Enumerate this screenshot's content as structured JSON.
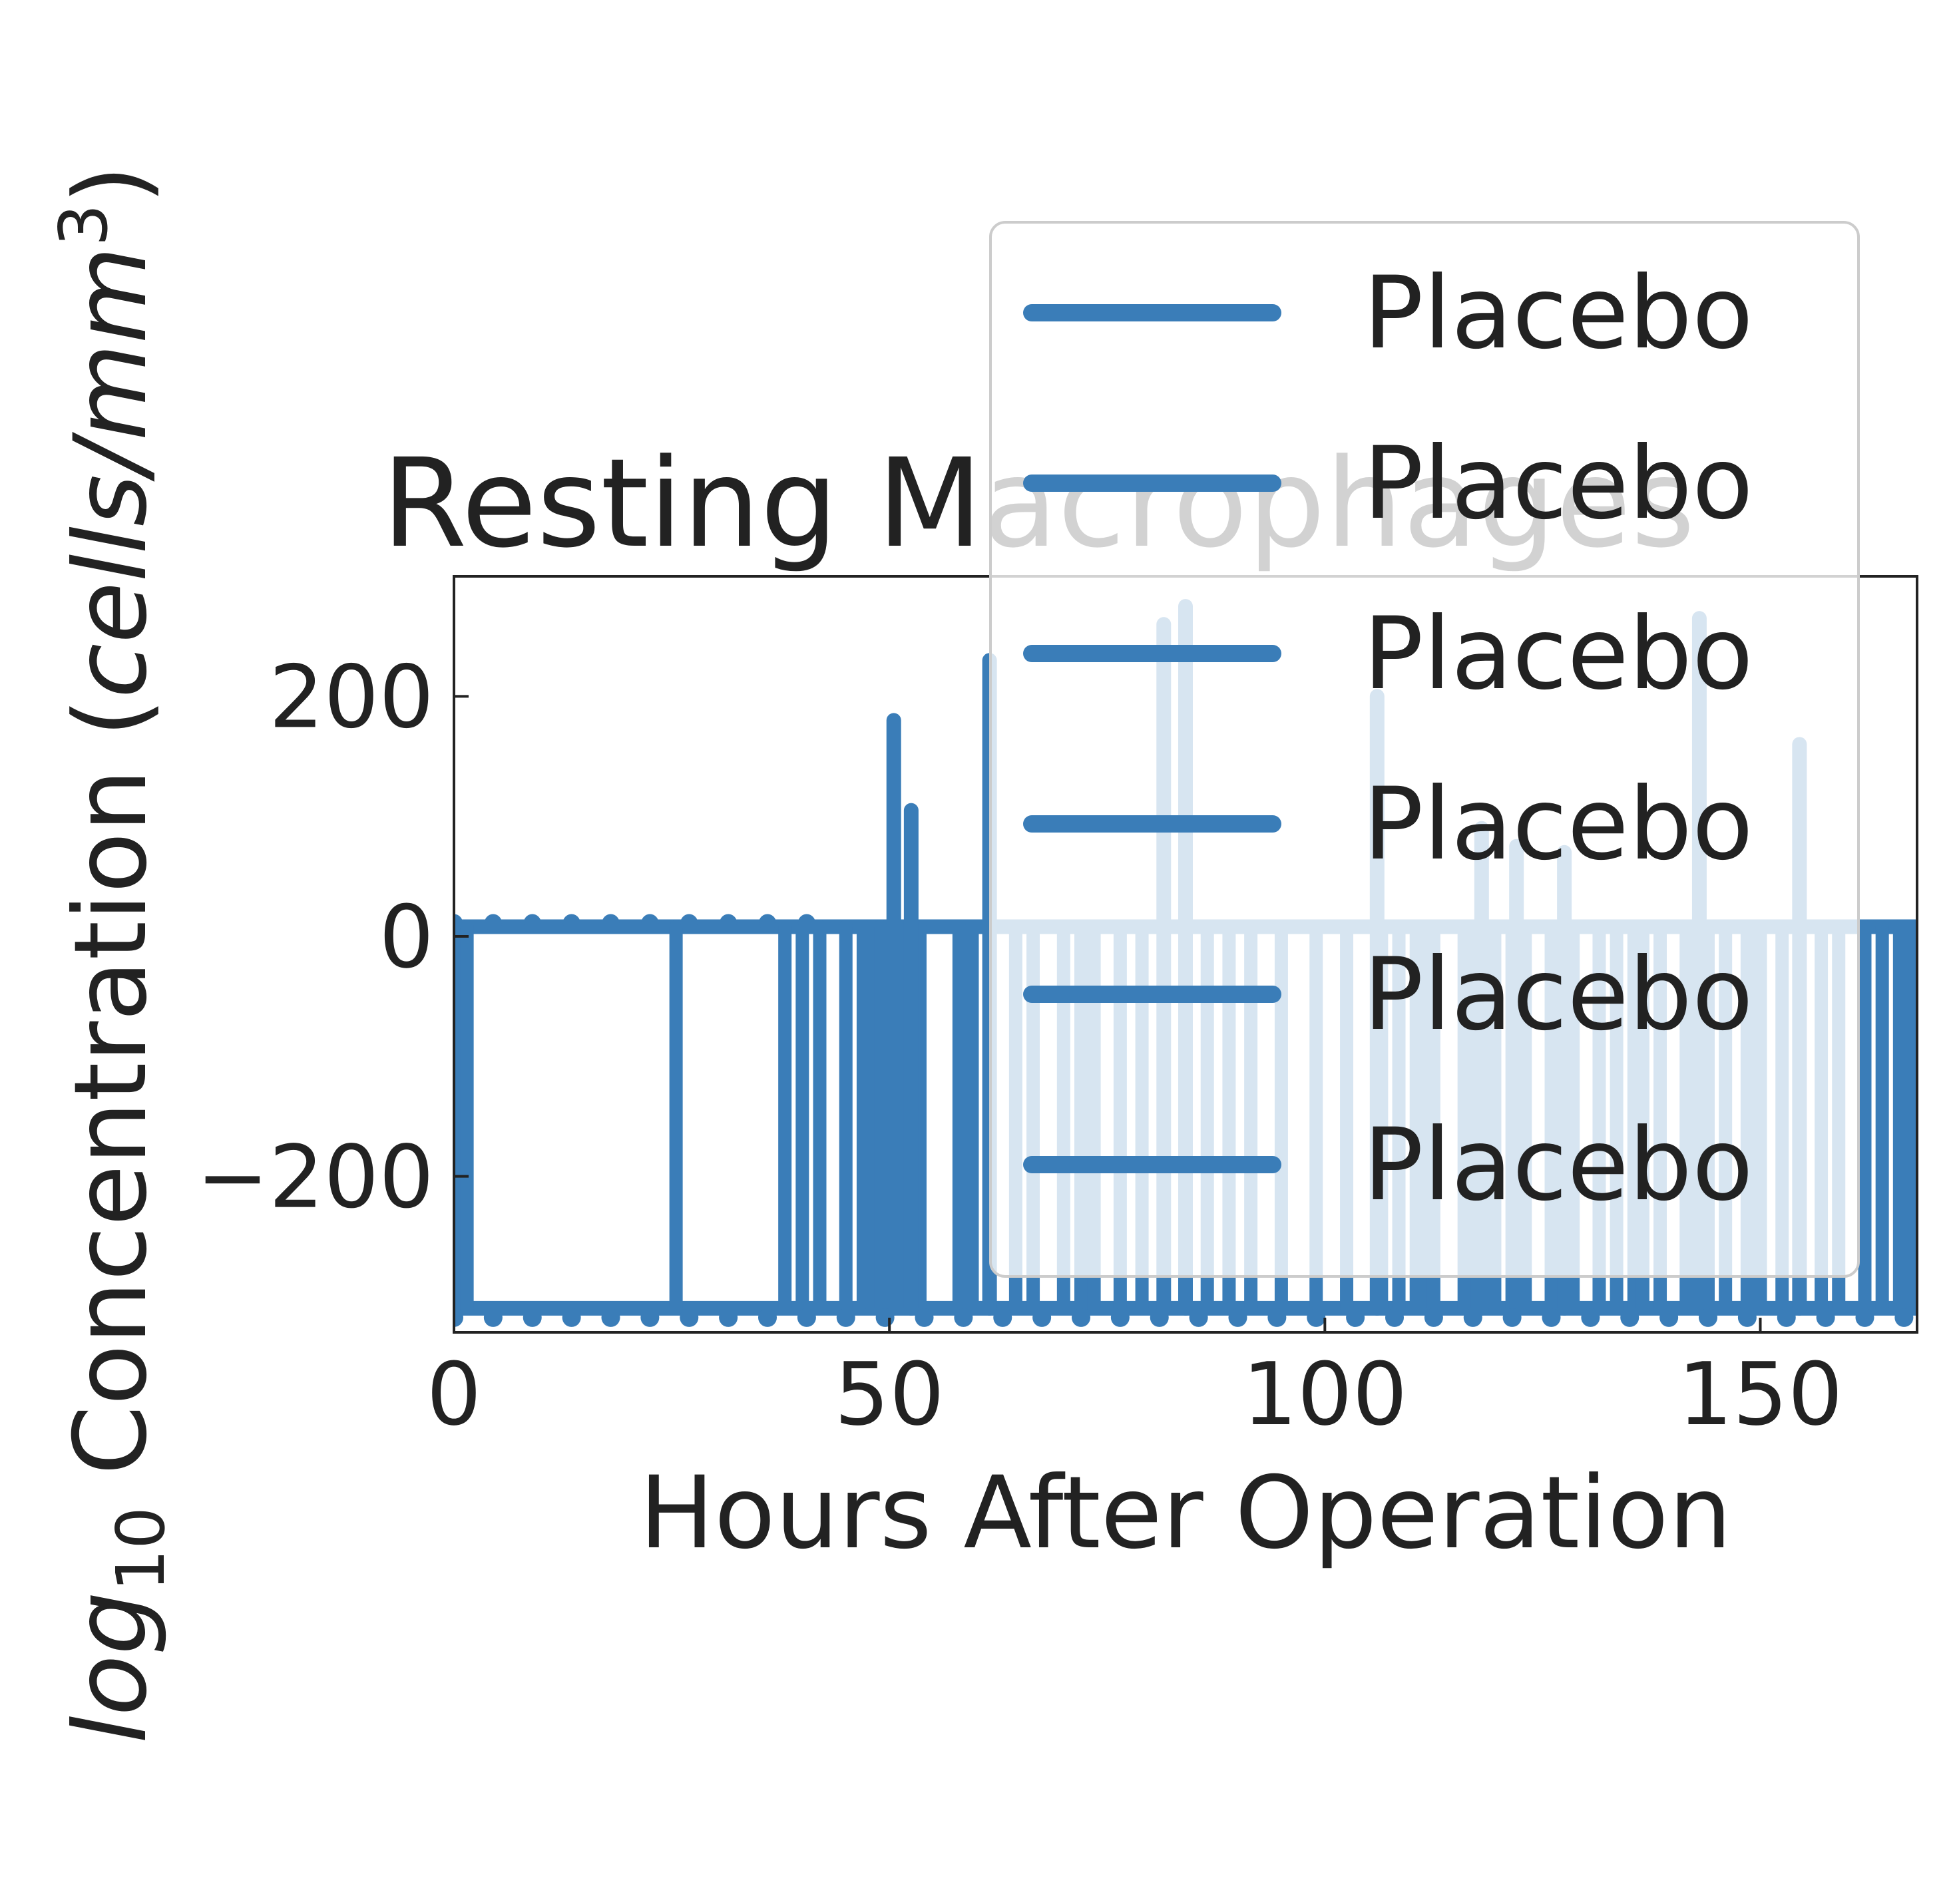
{
  "chart_data": {
    "type": "line",
    "title": "Resting Macrophages",
    "xlabel": "Hours After Operation",
    "ylabel": {
      "prefix": "log",
      "subscript": "10",
      "main": " Concentration (",
      "unit": "cells/mm",
      "superscript": "3",
      "suffix": ")"
    },
    "xlim": [
      0,
      168
    ],
    "ylim": [
      -330,
      300
    ],
    "xticks": [
      0,
      50,
      100,
      150
    ],
    "yticks": [
      -200,
      0,
      200
    ],
    "ytick_labels": [
      "−200",
      "0",
      "200"
    ],
    "grid": false,
    "legend": {
      "placement": "top-right",
      "entries": [
        "Placebo",
        "Placebo",
        "Placebo",
        "Placebo",
        "Placebo",
        "Placebo"
      ]
    },
    "series_color": "#3a7db8",
    "floor_level": -310,
    "upper_level": 8,
    "segments_to_floor": [
      0,
      1.5,
      25.5,
      38,
      40,
      42,
      45,
      47,
      48,
      49,
      51,
      52.5,
      53.5,
      58,
      59.5,
      64.5,
      66.5,
      70,
      72,
      73.5,
      76.5,
      79,
      81.5,
      84,
      86.5,
      89,
      91.5,
      95,
      99,
      102.5,
      106.5,
      108.5,
      110.5,
      111.5,
      112.5,
      116,
      117.5,
      119.5,
      121.5,
      123,
      126,
      128.5,
      131.5,
      133.5,
      135.5,
      136.5,
      138.5,
      141.5,
      144,
      146,
      148.5,
      150,
      152.5,
      154.5,
      157,
      159,
      162,
      164,
      166,
      167.5
    ],
    "spikes": [
      {
        "x": 50.5,
        "y": 180
      },
      {
        "x": 52.5,
        "y": 105
      },
      {
        "x": 61.5,
        "y": 230
      },
      {
        "x": 81.5,
        "y": 260
      },
      {
        "x": 84,
        "y": 275
      },
      {
        "x": 106,
        "y": 200
      },
      {
        "x": 118,
        "y": 90
      },
      {
        "x": 122,
        "y": 75
      },
      {
        "x": 127.5,
        "y": 70
      },
      {
        "x": 143,
        "y": 265
      },
      {
        "x": 154.5,
        "y": 160
      }
    ],
    "end_point": {
      "x": 167.7,
      "y": -30
    }
  }
}
